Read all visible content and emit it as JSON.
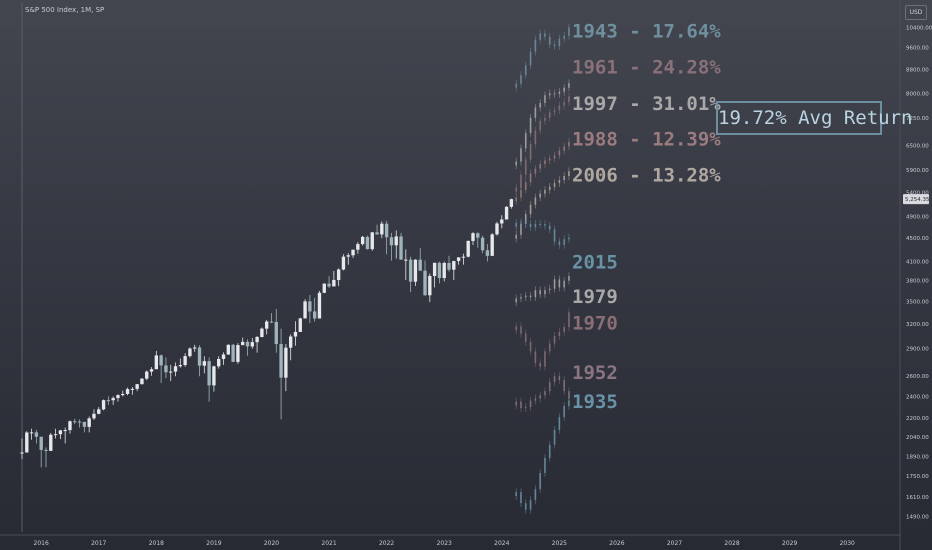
{
  "header": {
    "title": "S&P 500 Index, 1M, SP",
    "currency": "USD"
  },
  "price_tag": "5,254.35",
  "annotation": {
    "avg_return": "19.72% Avg Return"
  },
  "colors": {
    "bull_candle": "#e6e8ec",
    "bear_candle": "#9fb3bb",
    "box_border": "#6e8fa1",
    "text": "#c8cbd3"
  },
  "overlay_labels": [
    {
      "text": "1943 - 17.64%",
      "color": "#6f8f9f",
      "price": 9990
    },
    {
      "text": "1961 - 24.28%",
      "color": "#8a7078",
      "price": 8650
    },
    {
      "text": "1997 - 31.01%",
      "color": "#a8a8a8",
      "price": 7480
    },
    {
      "text": "1988 - 12.39%",
      "color": "#9b7b7e",
      "price": 6500
    },
    {
      "text": "2006 - 13.28%",
      "color": "#b0a8a0",
      "price": 5640
    },
    {
      "text": "2015",
      "color": "#6a92a6",
      "price": 3990
    },
    {
      "text": "1979",
      "color": "#a8a8a8",
      "price": 3480
    },
    {
      "text": "1970",
      "color": "#8a6e76",
      "price": 3130
    },
    {
      "text": "1952",
      "color": "#8a7580",
      "price": 2570
    },
    {
      "text": "1935",
      "color": "#6a92a6",
      "price": 2290
    }
  ],
  "chart_data": {
    "type": "candlestick",
    "title": "S&P 500 Index, 1M, SP",
    "x_axis": {
      "ticks": [
        "2016",
        "2017",
        "2018",
        "2019",
        "2020",
        "2021",
        "2022",
        "2023",
        "2024",
        "2025",
        "2026",
        "2027",
        "2028",
        "2029",
        "2030"
      ],
      "range": [
        "2015-09",
        "2030-12"
      ]
    },
    "y_axis": {
      "scale": "log",
      "ticks": [
        1490,
        1610,
        1750,
        1890,
        2040,
        2200,
        2400,
        2600,
        2900,
        3200,
        3500,
        3800,
        4100,
        4500,
        4900,
        5400,
        5900,
        6500,
        7250,
        8000,
        8800,
        9600,
        10400
      ],
      "range": [
        1400,
        11500
      ],
      "current_price": 5254.35
    },
    "series": [
      {
        "data": [
          [
            "2015-09",
            1920,
            2030,
            1870,
            1920
          ],
          [
            "2015-10",
            1920,
            2090,
            1920,
            2079
          ],
          [
            "2015-11",
            2079,
            2110,
            2020,
            2080
          ],
          [
            "2015-12",
            2080,
            2100,
            1990,
            2044
          ],
          [
            "2016-01",
            2044,
            2044,
            1810,
            1940
          ],
          [
            "2016-02",
            1940,
            1960,
            1810,
            1932
          ],
          [
            "2016-03",
            1932,
            2075,
            1932,
            2060
          ],
          [
            "2016-04",
            2060,
            2110,
            2030,
            2065
          ],
          [
            "2016-05",
            2065,
            2100,
            2025,
            2097
          ],
          [
            "2016-06",
            2097,
            2120,
            1990,
            2099
          ],
          [
            "2016-07",
            2099,
            2180,
            2070,
            2174
          ],
          [
            "2016-08",
            2174,
            2195,
            2150,
            2171
          ],
          [
            "2016-09",
            2171,
            2190,
            2120,
            2168
          ],
          [
            "2016-10",
            2168,
            2170,
            2080,
            2126
          ],
          [
            "2016-11",
            2126,
            2215,
            2080,
            2199
          ],
          [
            "2016-12",
            2199,
            2280,
            2185,
            2239
          ],
          [
            "2017-01",
            2239,
            2300,
            2235,
            2279
          ],
          [
            "2017-02",
            2279,
            2370,
            2270,
            2364
          ],
          [
            "2017-03",
            2364,
            2400,
            2320,
            2363
          ],
          [
            "2017-04",
            2363,
            2400,
            2320,
            2384
          ],
          [
            "2017-05",
            2384,
            2420,
            2350,
            2412
          ],
          [
            "2017-06",
            2412,
            2455,
            2400,
            2423
          ],
          [
            "2017-07",
            2423,
            2485,
            2410,
            2470
          ],
          [
            "2017-08",
            2470,
            2490,
            2415,
            2472
          ],
          [
            "2017-09",
            2472,
            2520,
            2450,
            2519
          ],
          [
            "2017-10",
            2519,
            2580,
            2515,
            2575
          ],
          [
            "2017-11",
            2575,
            2660,
            2560,
            2648
          ],
          [
            "2017-12",
            2648,
            2695,
            2605,
            2673
          ],
          [
            "2018-01",
            2673,
            2875,
            2680,
            2824
          ],
          [
            "2018-02",
            2824,
            2835,
            2530,
            2714
          ],
          [
            "2018-03",
            2714,
            2800,
            2580,
            2641
          ],
          [
            "2018-04",
            2641,
            2720,
            2550,
            2648
          ],
          [
            "2018-05",
            2648,
            2745,
            2600,
            2705
          ],
          [
            "2018-06",
            2705,
            2790,
            2690,
            2718
          ],
          [
            "2018-07",
            2718,
            2850,
            2700,
            2816
          ],
          [
            "2018-08",
            2816,
            2915,
            2800,
            2902
          ],
          [
            "2018-09",
            2902,
            2945,
            2865,
            2914
          ],
          [
            "2018-10",
            2914,
            2940,
            2600,
            2711
          ],
          [
            "2018-11",
            2711,
            2815,
            2630,
            2760
          ],
          [
            "2018-12",
            2760,
            2800,
            2350,
            2507
          ],
          [
            "2019-01",
            2507,
            2710,
            2445,
            2704
          ],
          [
            "2019-02",
            2704,
            2815,
            2680,
            2784
          ],
          [
            "2019-03",
            2784,
            2860,
            2720,
            2834
          ],
          [
            "2019-04",
            2834,
            2950,
            2830,
            2946
          ],
          [
            "2019-05",
            2946,
            2955,
            2750,
            2752
          ],
          [
            "2019-06",
            2752,
            2965,
            2730,
            2942
          ],
          [
            "2019-07",
            2942,
            3030,
            2940,
            2980
          ],
          [
            "2019-08",
            2980,
            3010,
            2820,
            2926
          ],
          [
            "2019-09",
            2926,
            3025,
            2900,
            2977
          ],
          [
            "2019-10",
            2977,
            3050,
            2855,
            3038
          ],
          [
            "2019-11",
            3038,
            3155,
            3035,
            3141
          ],
          [
            "2019-12",
            3141,
            3250,
            3070,
            3231
          ],
          [
            "2020-01",
            3231,
            3340,
            3210,
            3226
          ],
          [
            "2020-02",
            3226,
            3395,
            2855,
            2954
          ],
          [
            "2020-03",
            2954,
            3140,
            2190,
            2585
          ],
          [
            "2020-04",
            2585,
            2955,
            2450,
            2912
          ],
          [
            "2020-05",
            2912,
            3070,
            2770,
            3044
          ],
          [
            "2020-06",
            3044,
            3235,
            2935,
            3100
          ],
          [
            "2020-07",
            3100,
            3280,
            3100,
            3271
          ],
          [
            "2020-08",
            3271,
            3530,
            3270,
            3500
          ],
          [
            "2020-09",
            3500,
            3590,
            3210,
            3363
          ],
          [
            "2020-10",
            3363,
            3550,
            3230,
            3270
          ],
          [
            "2020-11",
            3270,
            3650,
            3280,
            3622
          ],
          [
            "2020-12",
            3622,
            3760,
            3615,
            3756
          ],
          [
            "2021-01",
            3756,
            3870,
            3690,
            3714
          ],
          [
            "2021-02",
            3714,
            3950,
            3720,
            3811
          ],
          [
            "2021-03",
            3811,
            3990,
            3720,
            3973
          ],
          [
            "2021-04",
            3973,
            4220,
            3960,
            4181
          ],
          [
            "2021-05",
            4181,
            4240,
            4050,
            4204
          ],
          [
            "2021-06",
            4204,
            4300,
            4160,
            4298
          ],
          [
            "2021-07",
            4298,
            4430,
            4230,
            4395
          ],
          [
            "2021-08",
            4395,
            4540,
            4370,
            4523
          ],
          [
            "2021-09",
            4523,
            4545,
            4300,
            4308
          ],
          [
            "2021-10",
            4308,
            4610,
            4280,
            4605
          ],
          [
            "2021-11",
            4605,
            4745,
            4560,
            4567
          ],
          [
            "2021-12",
            4567,
            4810,
            4500,
            4766
          ],
          [
            "2022-01",
            4766,
            4820,
            4220,
            4516
          ],
          [
            "2022-02",
            4516,
            4595,
            4115,
            4374
          ],
          [
            "2022-03",
            4374,
            4640,
            4150,
            4530
          ],
          [
            "2022-04",
            4530,
            4595,
            4130,
            4132
          ],
          [
            "2022-05",
            4132,
            4305,
            3810,
            4132
          ],
          [
            "2022-06",
            4132,
            4180,
            3630,
            3785
          ],
          [
            "2022-07",
            3785,
            4140,
            3720,
            4130
          ],
          [
            "2022-08",
            4130,
            4330,
            3950,
            3955
          ],
          [
            "2022-09",
            3955,
            4120,
            3580,
            3586
          ],
          [
            "2022-10",
            3586,
            3910,
            3490,
            3872
          ],
          [
            "2022-11",
            3872,
            4080,
            3700,
            4080
          ],
          [
            "2022-12",
            4080,
            4100,
            3760,
            3840
          ],
          [
            "2023-01",
            3840,
            4100,
            3790,
            4077
          ],
          [
            "2023-02",
            4077,
            4195,
            3940,
            3970
          ],
          [
            "2023-03",
            3970,
            4110,
            3810,
            4109
          ],
          [
            "2023-04",
            4109,
            4170,
            4050,
            4169
          ],
          [
            "2023-05",
            4169,
            4230,
            4050,
            4180
          ],
          [
            "2023-06",
            4180,
            4460,
            4170,
            4450
          ],
          [
            "2023-07",
            4450,
            4610,
            4380,
            4589
          ],
          [
            "2023-08",
            4589,
            4605,
            4330,
            4508
          ],
          [
            "2023-09",
            4508,
            4545,
            4240,
            4288
          ],
          [
            "2023-10",
            4288,
            4395,
            4100,
            4194
          ],
          [
            "2023-11",
            4194,
            4590,
            4190,
            4568
          ],
          [
            "2023-12",
            4568,
            4800,
            4545,
            4770
          ],
          [
            "2024-01",
            4770,
            4930,
            4680,
            4846
          ],
          [
            "2024-02",
            4846,
            5110,
            4850,
            5096
          ],
          [
            "2024-03",
            5096,
            5265,
            5060,
            5254
          ]
        ]
      }
    ],
    "projections": [
      {
        "name": "1943 - 17.64%",
        "color": "#6f8f9f",
        "closes": [
          8310,
          8600,
          8940,
          9440,
          9900,
          10150,
          10020,
          9710,
          9650,
          9940,
          10050,
          10400
        ]
      },
      {
        "name": "1961 - 24.28%",
        "color": "#8a7078",
        "closes": [
          5500,
          5790,
          6150,
          6540,
          6900,
          7170,
          7260,
          7420,
          7480,
          7620,
          7730,
          7900
        ]
      },
      {
        "name": "1997 - 31.01%",
        "color": "#a8a8a8",
        "closes": [
          6100,
          6430,
          6830,
          7260,
          7560,
          7700,
          7940,
          8000,
          7980,
          8050,
          8180,
          8330
        ]
      },
      {
        "name": "1988 - 12.39%",
        "color": "#9b7b7e",
        "closes": [
          5290,
          5450,
          5620,
          5820,
          5930,
          6040,
          6130,
          6180,
          6250,
          6370,
          6480,
          6600
        ]
      },
      {
        "name": "2006 - 13.28%",
        "color": "#b0a8a0",
        "closes": [
          4560,
          4760,
          4950,
          5140,
          5290,
          5370,
          5450,
          5520,
          5600,
          5670,
          5760,
          5870
        ]
      },
      {
        "name": "2015",
        "color": "#6a92a6",
        "closes": [
          4780,
          4790,
          4760,
          4700,
          4760,
          4760,
          4730,
          4660,
          4440,
          4380,
          4480,
          4510
        ]
      },
      {
        "name": "1979",
        "color": "#a8a8a8",
        "closes": [
          3540,
          3560,
          3580,
          3560,
          3660,
          3600,
          3660,
          3680,
          3820,
          3700,
          3800,
          3870
        ]
      },
      {
        "name": "1970",
        "color": "#8a6e76",
        "closes": [
          3170,
          3080,
          2980,
          2870,
          2740,
          2700,
          2870,
          2960,
          3050,
          3100,
          3160,
          3350
        ]
      },
      {
        "name": "1952",
        "color": "#8a7580",
        "closes": [
          2350,
          2290,
          2300,
          2360,
          2380,
          2410,
          2450,
          2540,
          2600,
          2560,
          2450,
          2380
        ]
      },
      {
        "name": "1935",
        "color": "#6a92a6",
        "closes": [
          1640,
          1570,
          1530,
          1590,
          1660,
          1770,
          1880,
          1980,
          2100,
          2210,
          2310,
          2360
        ]
      }
    ],
    "annotation": "19.72% Avg Return",
    "grid": false,
    "legend": "none"
  }
}
